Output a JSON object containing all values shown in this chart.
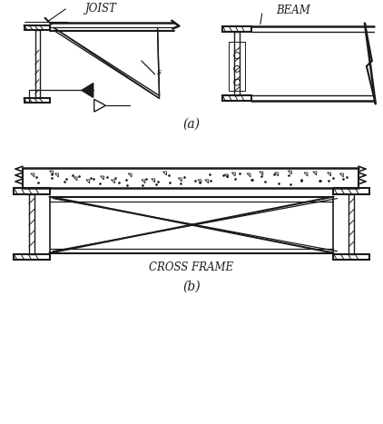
{
  "fig_width": 4.22,
  "fig_height": 4.67,
  "dpi": 100,
  "bg_color": "#ffffff",
  "line_color": "#1a1a1a",
  "label_a": "(a)",
  "label_b": "(b)",
  "label_joist": "JOIST",
  "label_beam": "BEAM",
  "label_cross_frame": "CROSS FRAME",
  "font_size_labels": 8.5,
  "font_size_caption": 10
}
